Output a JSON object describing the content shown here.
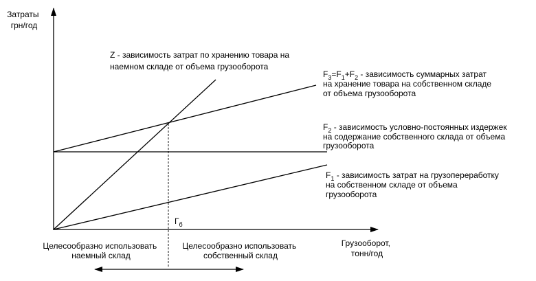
{
  "axes": {
    "y_label": [
      "Затраты",
      "грн/год"
    ],
    "x_label": [
      "Грузооборот,",
      "тонн/год"
    ]
  },
  "lines": {
    "z": {
      "label": [
        "Z - зависимость затрат по хранению товара на",
        "наемном складе от объема грузооборота"
      ]
    },
    "f3": {
      "formula": {
        "F": "F",
        "sub3": "3",
        "eq": "=F",
        "sub1": "1",
        "plus": "+F",
        "sub2": "2"
      },
      "desc": " - зависимость суммарных затрат",
      "label_rest": [
        "на хранение товара на собственном складе",
        "от объема грузооборота"
      ]
    },
    "f2": {
      "formula": {
        "F": "F",
        "sub": "2"
      },
      "desc": " - зависимость условно-постоянных издержек",
      "label_rest": [
        "на содержание собственного склада от объема",
        "грузооборота"
      ]
    },
    "f1": {
      "formula": {
        "F": "F",
        "sub": "1"
      },
      "desc": " - зависимость затрат на грузопереработку",
      "label_rest": [
        "на собственном складе от объема",
        "грузооборота"
      ]
    }
  },
  "breakeven": {
    "G": "Г",
    "sub": "б"
  },
  "regions": {
    "left": [
      "Целесообразно использовать",
      "наемный склад"
    ],
    "right": [
      "Целесообразно использовать",
      "собственный склад"
    ]
  }
}
